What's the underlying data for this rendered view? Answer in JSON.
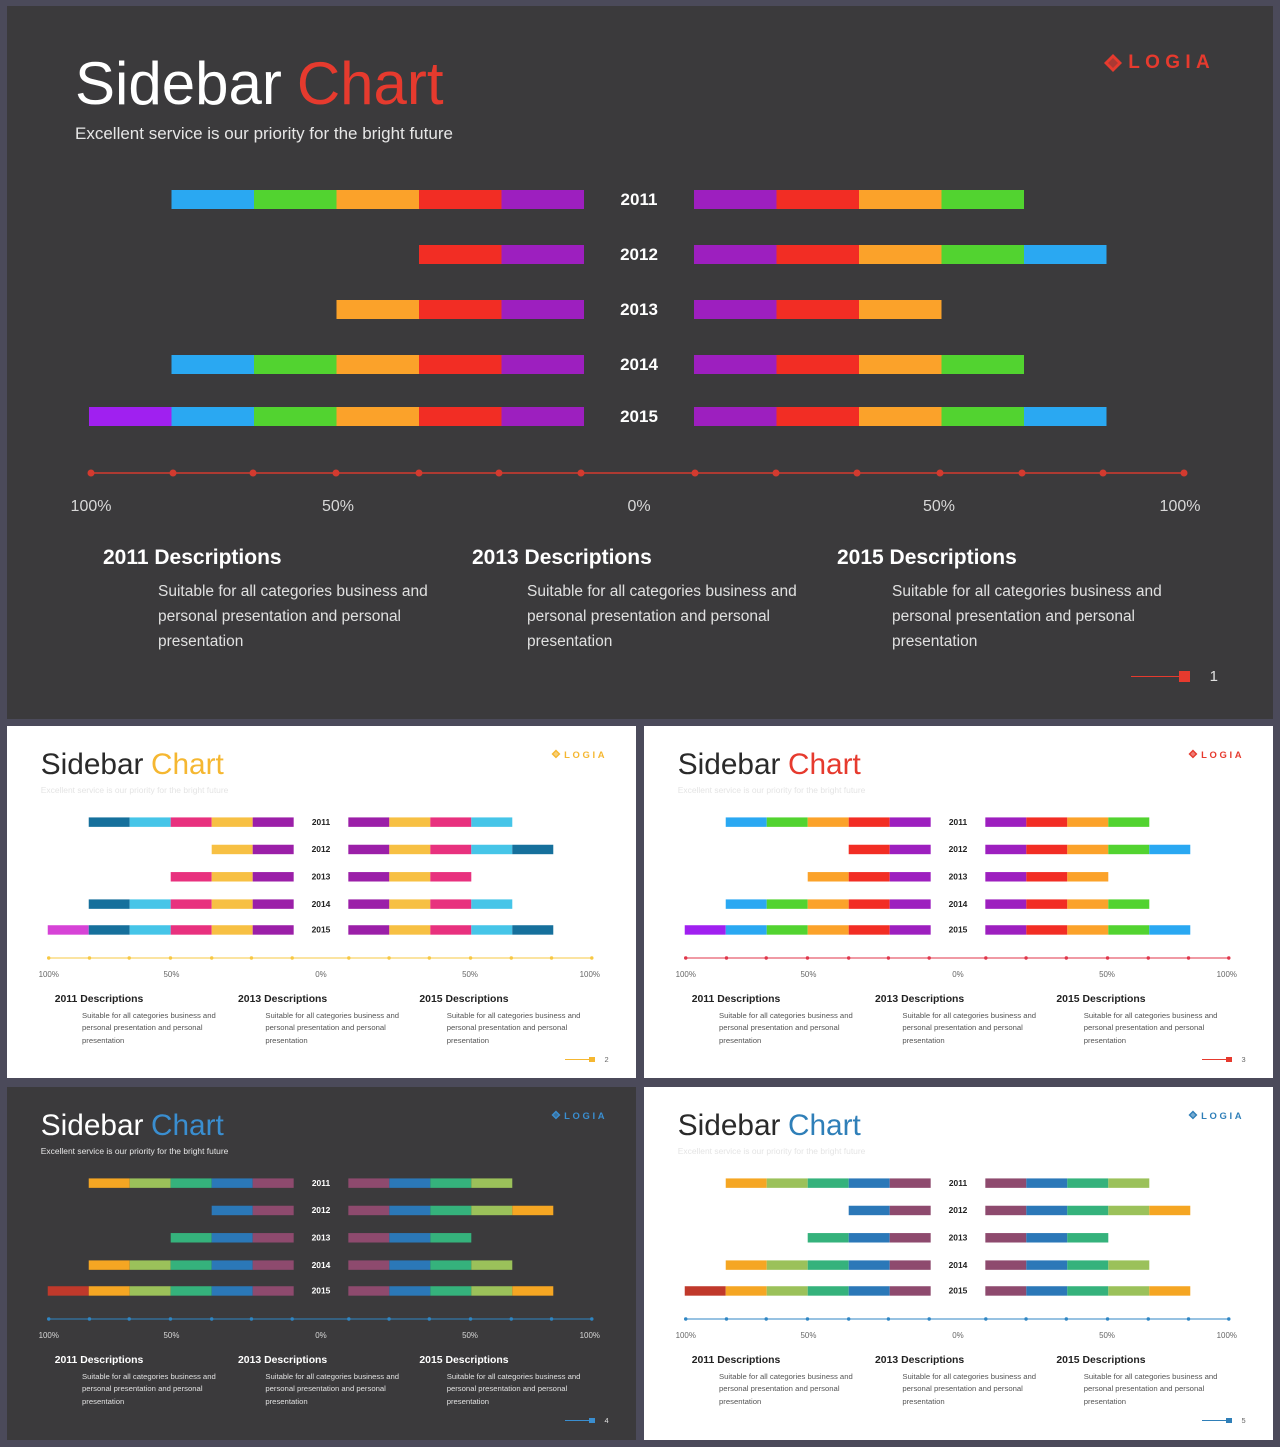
{
  "slides": [
    {
      "title_main": "Sidebar",
      "title_accent": "Chart",
      "subtitle": "Excellent service is our priority for the bright future",
      "logo_text": "LOGIA",
      "theme": "dark",
      "accent_color": "#e63a2e",
      "axis_color": "#d33a2f",
      "page_number": "1",
      "palette": [
        "#a020f0",
        "#2aa8f2",
        "#52d330",
        "#fba22a",
        "#f22d24",
        "#9d1fbf"
      ],
      "descriptions": [
        {
          "title": "2011 Descriptions",
          "text": "Suitable for all categories business and personal presentation and personal presentation"
        },
        {
          "title": "2013 Descriptions",
          "text": "Suitable for all categories business and personal presentation and personal presentation"
        },
        {
          "title": "2015 Descriptions",
          "text": "Suitable for all categories business and personal presentation and personal presentation"
        }
      ]
    },
    {
      "title_main": "Sidebar",
      "title_accent": "Chart",
      "subtitle": "Excellent service is our priority for the bright future",
      "logo_text": "LOGIA",
      "theme": "light",
      "accent_color": "#f5b731",
      "axis_color": "#f7c843",
      "page_number": "2",
      "palette": [
        "#d643d6",
        "#16709c",
        "#46c5e8",
        "#e8317e",
        "#f7c043",
        "#9b1fa8"
      ],
      "descriptions": [
        {
          "title": "2011 Descriptions",
          "text": "Suitable for all categories business and personal presentation and personal presentation"
        },
        {
          "title": "2013 Descriptions",
          "text": "Suitable for all categories business and personal presentation and personal presentation"
        },
        {
          "title": "2015 Descriptions",
          "text": "Suitable for all categories business and personal presentation and personal presentation"
        }
      ]
    },
    {
      "title_main": "Sidebar",
      "title_accent": "Chart",
      "subtitle": "Excellent service is our priority for the bright future",
      "logo_text": "LOGIA",
      "theme": "light",
      "accent_color": "#e63a2e",
      "axis_color": "#e0364a",
      "page_number": "3",
      "palette": [
        "#a020f0",
        "#2aa8f2",
        "#52d330",
        "#fba22a",
        "#f22d24",
        "#9d1fbf"
      ],
      "descriptions": [
        {
          "title": "2011 Descriptions",
          "text": "Suitable for all categories business and personal presentation and personal presentation"
        },
        {
          "title": "2013 Descriptions",
          "text": "Suitable for all categories business and personal presentation and personal presentation"
        },
        {
          "title": "2015 Descriptions",
          "text": "Suitable for all categories business and personal presentation and personal presentation"
        }
      ]
    },
    {
      "title_main": "Sidebar",
      "title_accent": "Chart",
      "subtitle": "Excellent service is our priority for the bright future",
      "logo_text": "LOGIA",
      "theme": "dark",
      "accent_color": "#3a8ed0",
      "axis_color": "#2f86c4",
      "page_number": "4",
      "palette": [
        "#c0392b",
        "#f5a623",
        "#9bc15a",
        "#35b27c",
        "#2b78b8",
        "#8e4a6e"
      ],
      "descriptions": [
        {
          "title": "2011 Descriptions",
          "text": "Suitable for all categories business and personal presentation and personal presentation"
        },
        {
          "title": "2013 Descriptions",
          "text": "Suitable for all categories business and personal presentation and personal presentation"
        },
        {
          "title": "2015 Descriptions",
          "text": "Suitable for all categories business and personal presentation and personal presentation"
        }
      ]
    },
    {
      "title_main": "Sidebar",
      "title_accent": "Chart",
      "subtitle": "Excellent service is our priority for the bright future",
      "logo_text": "LOGIA",
      "theme": "light",
      "accent_color": "#2f7fb8",
      "axis_color": "#2f86c4",
      "page_number": "5",
      "palette": [
        "#c0392b",
        "#f5a623",
        "#9bc15a",
        "#35b27c",
        "#2b78b8",
        "#8e4a6e"
      ],
      "descriptions": [
        {
          "title": "2011 Descriptions",
          "text": "Suitable for all categories business and personal presentation and personal presentation"
        },
        {
          "title": "2013 Descriptions",
          "text": "Suitable for all categories business and personal presentation and personal presentation"
        },
        {
          "title": "2015 Descriptions",
          "text": "Suitable for all categories business and personal presentation and personal presentation"
        }
      ]
    }
  ],
  "chart_data": {
    "type": "bar",
    "categories": [
      "2011",
      "2012",
      "2013",
      "2014",
      "2015"
    ],
    "left_segments": [
      5,
      2,
      3,
      5,
      6
    ],
    "right_segments": [
      4,
      5,
      3,
      4,
      5
    ],
    "x_tick_labels_left": [
      "100%",
      "50%"
    ],
    "x_tick_labels_right": [
      "0%",
      "50%",
      "100%"
    ],
    "xlim_left": [
      100,
      0
    ],
    "xlim_right": [
      0,
      100
    ]
  }
}
